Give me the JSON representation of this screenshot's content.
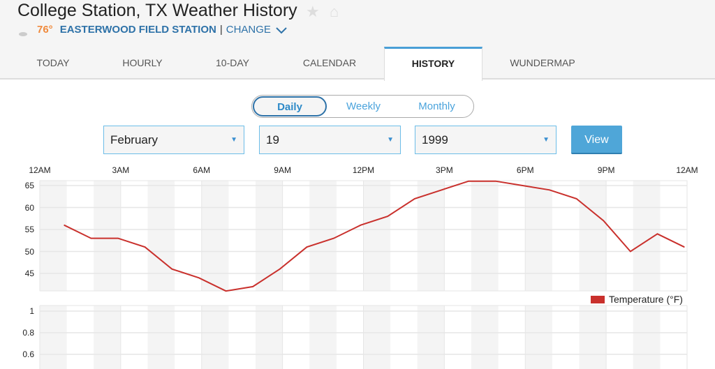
{
  "header": {
    "title": "College Station, TX Weather History",
    "current_temp": "76°",
    "station": "EASTERWOOD FIELD STATION",
    "separator": "|",
    "change_label": "CHANGE",
    "icons": [
      "moon-cloud-icon",
      "star-icon",
      "home-icon",
      "chevron-down-icon"
    ]
  },
  "tabs": [
    {
      "label": "TODAY"
    },
    {
      "label": "HOURLY"
    },
    {
      "label": "10-DAY"
    },
    {
      "label": "CALENDAR"
    },
    {
      "label": "HISTORY",
      "active": true
    },
    {
      "label": "WUNDERMAP"
    }
  ],
  "period": {
    "options": [
      "Daily",
      "Weekly",
      "Monthly"
    ],
    "selected": "Daily"
  },
  "form": {
    "month": "February",
    "day": "19",
    "year": "1999",
    "view_label": "View"
  },
  "colors": {
    "accent": "#4fa6d8",
    "series": "#c9302c",
    "temp": "#f08a3c",
    "station": "#2e72a8"
  },
  "chart_data": [
    {
      "type": "line",
      "x_tick_labels": [
        "12AM",
        "3AM",
        "6AM",
        "9AM",
        "12PM",
        "3PM",
        "6PM",
        "9PM",
        "12AM"
      ],
      "y_ticks": [
        "65",
        "60",
        "55",
        "50",
        "45"
      ],
      "ylim": [
        41,
        66
      ],
      "xlim_hours": [
        0,
        24
      ],
      "grid": true,
      "x_hours": [
        0.9,
        1.9,
        2.9,
        3.9,
        4.9,
        5.9,
        6.9,
        7.9,
        8.9,
        9.9,
        10.9,
        11.9,
        12.9,
        13.9,
        14.9,
        15.9,
        16.9,
        17.9,
        18.9,
        19.9,
        20.9,
        21.9,
        22.9,
        23.9
      ],
      "series": [
        {
          "name": "Temperature (°F)",
          "values": [
            56,
            53,
            53,
            51,
            46,
            44,
            41,
            42,
            46,
            51,
            53,
            56,
            58,
            62,
            64,
            66,
            66,
            65,
            64,
            62,
            57,
            50,
            54,
            51
          ]
        }
      ],
      "legend": "bottom-right"
    },
    {
      "type": "line",
      "y_ticks": [
        "1",
        "0.8",
        "0.6"
      ],
      "grid": true,
      "series": []
    }
  ]
}
